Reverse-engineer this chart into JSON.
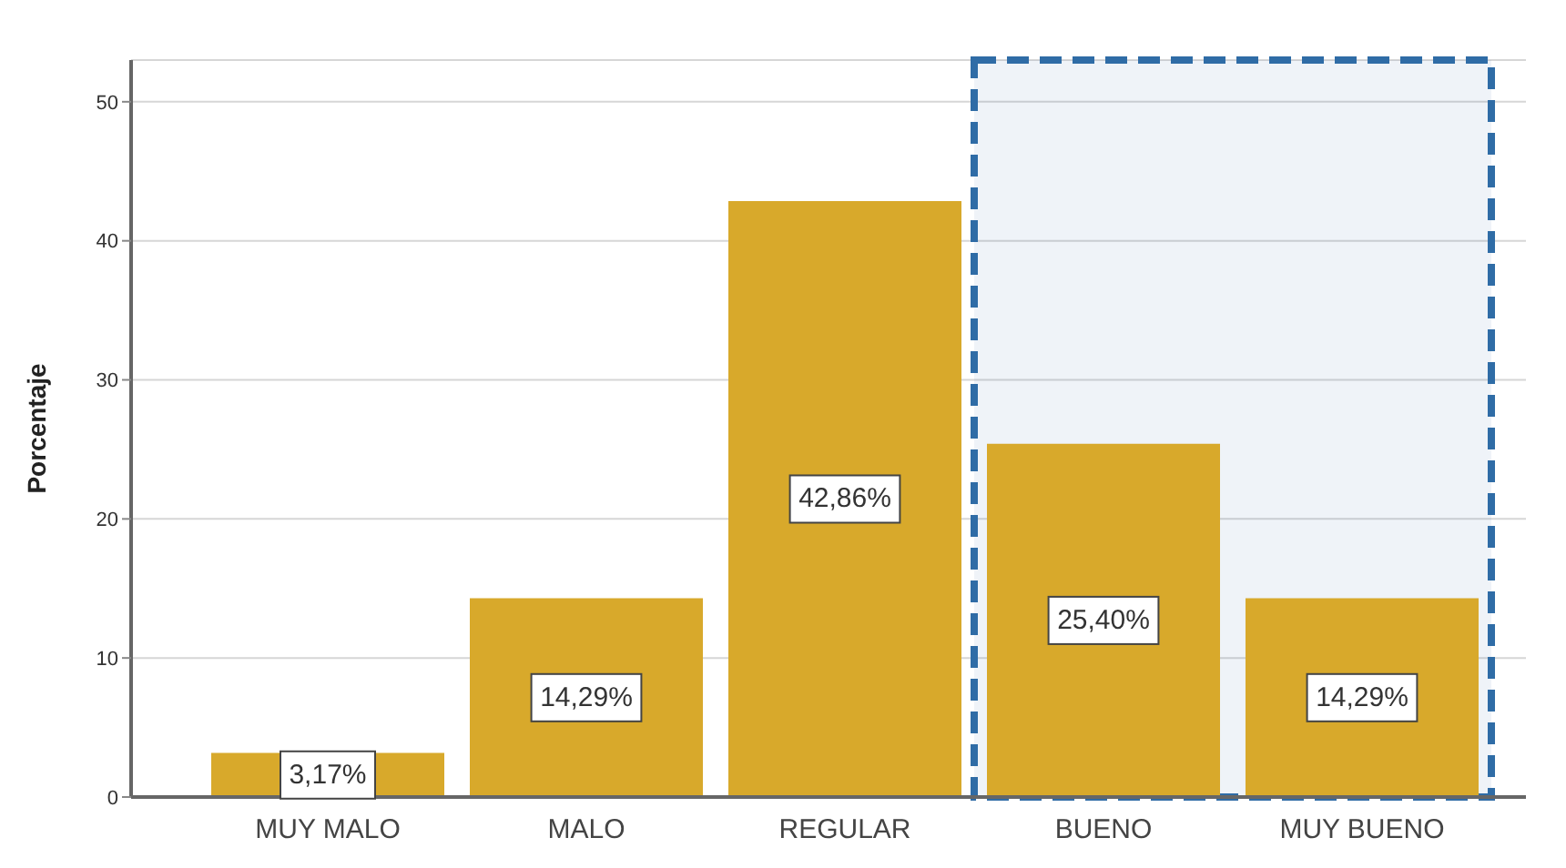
{
  "chart_data": {
    "type": "bar",
    "ylabel": "Porcentaje",
    "categories": [
      "MUY MALO",
      "MALO",
      "REGULAR",
      "BUENO",
      "MUY BUENO"
    ],
    "values": [
      3.17,
      14.29,
      42.86,
      25.4,
      14.29
    ],
    "value_labels": [
      "3,17%",
      "14,29%",
      "42,86%",
      "25,40%",
      "14,29%"
    ],
    "color": "#d8a92b",
    "ylim": [
      0,
      53
    ],
    "yticks": [
      0,
      10,
      20,
      30,
      40,
      50
    ],
    "grid": "y",
    "bands": [
      {
        "axis": "x",
        "from": "BUENO",
        "to": "MUY BUENO",
        "color": "#2f6ca6"
      }
    ]
  }
}
